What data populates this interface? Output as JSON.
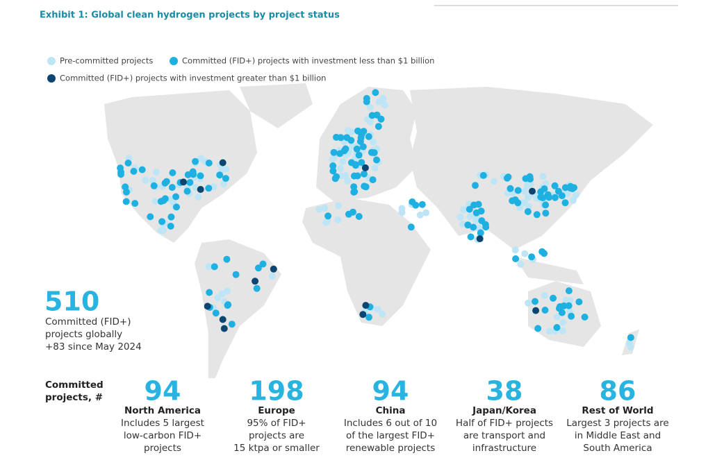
{
  "header": {
    "title": "Exhibit 1: Global clean hydrogen projects by project status"
  },
  "legend": [
    {
      "label": "Pre-committed projects",
      "color": "#bde5f5"
    },
    {
      "label": "Committed (FID+) projects with investment less than $1 billion",
      "color": "#1eb0e0"
    },
    {
      "label": "Committed (FID+) projects with investment greater than $1 billion",
      "color": "#0c4670"
    }
  ],
  "headline": {
    "value": 510,
    "lines": [
      "Committed (FID+)",
      "projects globally",
      "+83 since May 2024"
    ]
  },
  "footer": {
    "label_lines": [
      "Committed",
      "projects, #"
    ],
    "regions": [
      {
        "value": 94,
        "name": "North America",
        "lines": [
          "Includes 5 largest",
          "low-carbon FID+",
          "projects"
        ]
      },
      {
        "value": 198,
        "name": "Europe",
        "lines": [
          "95% of FID+",
          "projects are",
          "15 ktpa or smaller"
        ]
      },
      {
        "value": 94,
        "name": "China",
        "lines": [
          "Includes 6 out of 10",
          "of the largest FID+",
          "renewable projects"
        ]
      },
      {
        "value": 38,
        "name": "Japan/Korea",
        "lines": [
          "Half of FID+ projects",
          "are transport and",
          "infrastructure"
        ]
      },
      {
        "value": 86,
        "name": "Rest of World",
        "lines": [
          "Largest 3 projects are",
          "in Middle East and",
          "South America"
        ]
      }
    ]
  }
}
